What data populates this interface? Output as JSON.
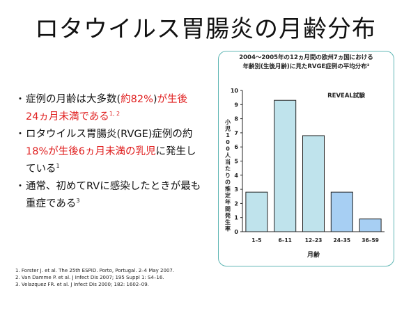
{
  "slide": {
    "title": "ロタウイルス胃腸炎の月齢分布"
  },
  "bullets": [
    {
      "mark": "・",
      "lines": [
        [
          {
            "t": "症例の月齢は大多数(",
            "hl": false
          },
          {
            "t": "約82%",
            "hl": true
          },
          {
            "t": ")",
            "hl": false
          },
          {
            "t": "が生後",
            "hl": true
          }
        ],
        [
          {
            "t": "24ヵ月未満である",
            "hl": true
          },
          {
            "t": "1, 2",
            "hl": true,
            "sup": true
          }
        ]
      ]
    },
    {
      "mark": "・",
      "lines": [
        [
          {
            "t": "ロタウイルス胃腸炎(RVGE)症例の約",
            "hl": false
          }
        ],
        [
          {
            "t": "18%が生後6ヵ月未満の乳児",
            "hl": true
          },
          {
            "t": "に発生し",
            "hl": false
          }
        ],
        [
          {
            "t": "ている",
            "hl": false
          },
          {
            "t": "1",
            "hl": false,
            "sup": true
          }
        ]
      ]
    },
    {
      "mark": "・",
      "lines": [
        [
          {
            "t": "通常、初めてRVに感染したときが最も",
            "hl": false
          }
        ],
        [
          {
            "t": "重症である",
            "hl": false
          },
          {
            "t": "3",
            "hl": false,
            "sup": true
          }
        ]
      ]
    }
  ],
  "references": [
    "1.  Forster J. et al. The 25th ESPID. Porto, Portugal. 2–4 May 2007.",
    "2.  Van Damme P. et al. J Infect Dis 2007; 195 Suppl 1: S4–16.",
    "3.  Velazquez FR. et al. J Infect Dis 2000; 182: 1602–09."
  ],
  "chart_data": {
    "type": "bar",
    "title_lines": [
      "2004～2005年の12ヵ月間の欧州7ヵ国における",
      "年齢別(生後月齢)に見たRVGE症例の平均分布²"
    ],
    "annotation": "REVEAL試験",
    "xlabel": "月齢",
    "ylabel": "小児100人当たりの推定年間発生率",
    "categories": [
      "1–5",
      "6–11",
      "12–23",
      "24–35",
      "36–59"
    ],
    "values": [
      2.8,
      9.3,
      6.8,
      2.8,
      0.9
    ],
    "ylim": [
      0,
      10
    ],
    "yticks": [
      "0",
      "1",
      "2",
      "3",
      "4",
      "5",
      "6",
      "7",
      "8",
      "9",
      "10"
    ],
    "bar_colors": [
      "#bfe3ec",
      "#bfe3ec",
      "#bfe3ec",
      "#a7cff3",
      "#a7cff3"
    ],
    "grid": false
  }
}
